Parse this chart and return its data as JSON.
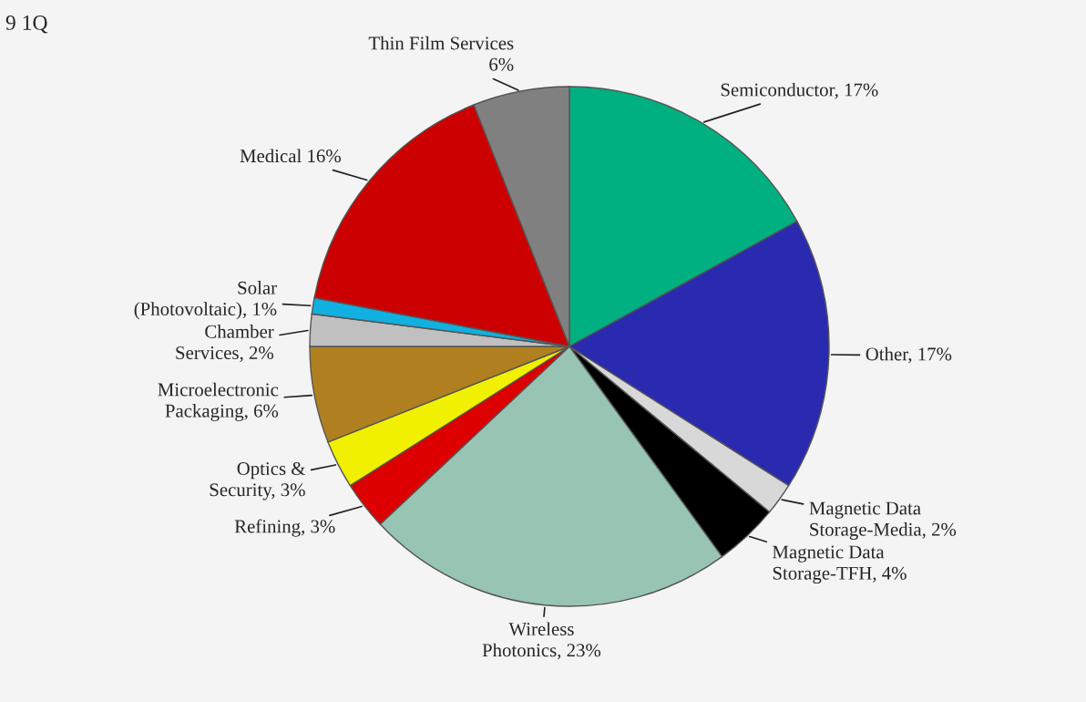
{
  "chart_data": {
    "type": "pie",
    "categories": [
      "Semiconductor, 17%",
      "Other, 17%",
      "Magnetic Data\nStorage-Media, 2%",
      "Magnetic Data\nStorage-TFH, 4%",
      "Wireless\nPhotonics, 23%",
      "Refining, 3%",
      "Optics &\nSecurity, 3%",
      "Microelectronic\nPackaging, 6%",
      "Chamber\nServices, 2%",
      "Solar\n(Photovoltaic), 1%",
      "Medical 16%",
      "Thin Film Services\n6%"
    ],
    "values": [
      17,
      17,
      2,
      4,
      23,
      3,
      3,
      6,
      2,
      1,
      16,
      6
    ],
    "colors": [
      "#00b080",
      "#2a2ab0",
      "#d8d8d8",
      "#000000",
      "#98c4b4",
      "#dd0000",
      "#f0f000",
      "#b08020",
      "#c0c0c0",
      "#10b0e0",
      "#cc0000",
      "#808080"
    ],
    "annotations": [
      "9 1Q"
    ],
    "legend": false
  }
}
